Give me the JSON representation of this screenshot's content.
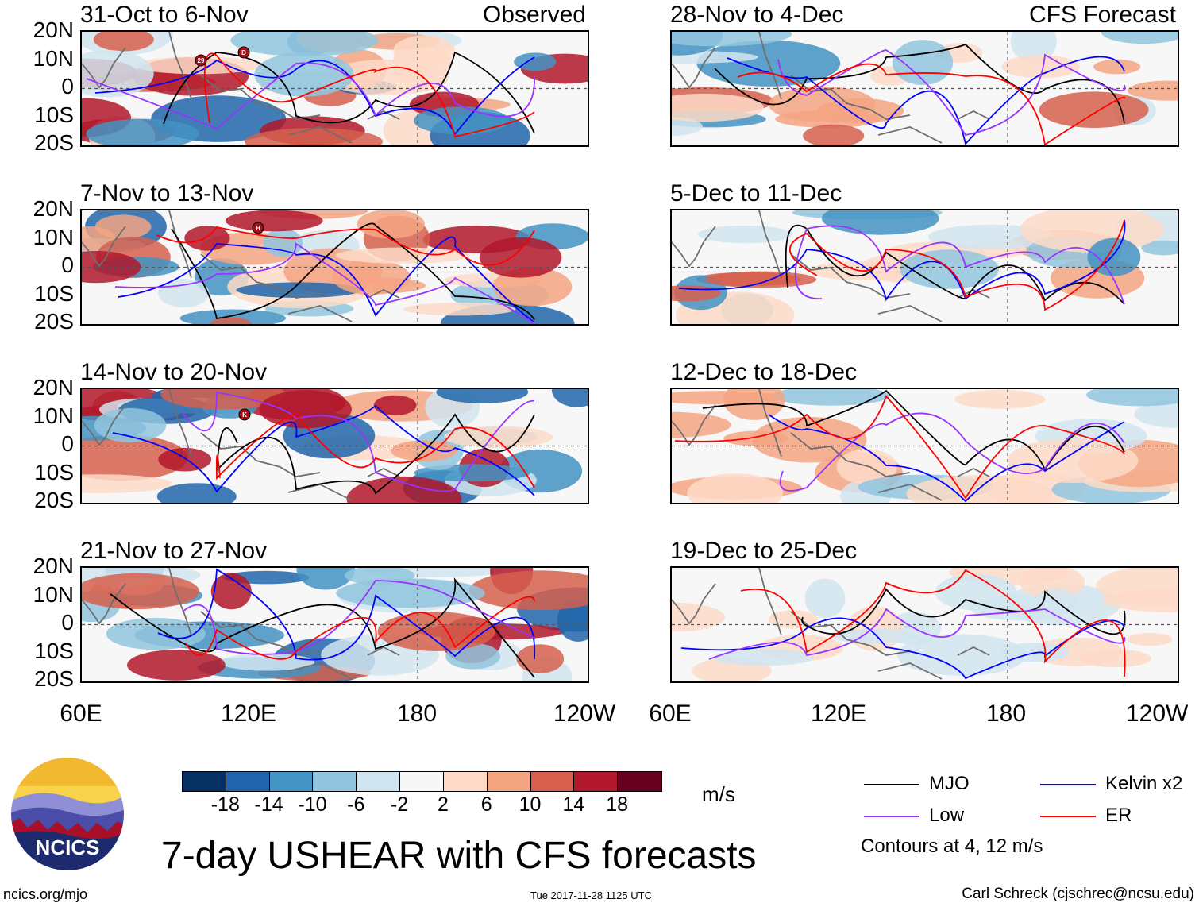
{
  "panels": {
    "left": [
      {
        "title": "31-Oct to 6-Nov",
        "tag": "Observed"
      },
      {
        "title": "7-Nov to 13-Nov",
        "tag": ""
      },
      {
        "title": "14-Nov to 20-Nov",
        "tag": ""
      },
      {
        "title": "21-Nov to 27-Nov",
        "tag": ""
      }
    ],
    "right": [
      {
        "title": "28-Nov to 4-Dec",
        "tag": "CFS Forecast"
      },
      {
        "title": "5-Dec to 11-Dec",
        "tag": ""
      },
      {
        "title": "12-Dec to 18-Dec",
        "tag": ""
      },
      {
        "title": "19-Dec to 25-Dec",
        "tag": ""
      }
    ]
  },
  "lat_labels": [
    "20N",
    "10N",
    "0",
    "10S",
    "20S"
  ],
  "lon_labels": [
    "60E",
    "120E",
    "180",
    "120W"
  ],
  "storm_markers": {
    "panel1": [
      "29",
      "D"
    ],
    "panel2": [
      "H"
    ],
    "panel3": [
      "K"
    ]
  },
  "colorbar": {
    "colors": [
      "#053061",
      "#2166ac",
      "#4393c3",
      "#92c5de",
      "#d1e5f0",
      "#f7f7f7",
      "#fddbc7",
      "#f4a582",
      "#d6604d",
      "#b2182b",
      "#67001f"
    ],
    "ticks": [
      "-18",
      "-14",
      "-10",
      "-6",
      "-2",
      "2",
      "6",
      "10",
      "14",
      "18"
    ],
    "units": "m/s"
  },
  "contour_legend": {
    "items": [
      {
        "label": "MJO",
        "color": "#000000"
      },
      {
        "label": "Kelvin x2",
        "color": "#0000ff"
      },
      {
        "label": "Low",
        "color": "#9933ff"
      },
      {
        "label": "ER",
        "color": "#ff0000"
      }
    ],
    "note": "Contours at 4, 12 m/s"
  },
  "title": "7-day USHEAR with CFS forecasts",
  "logo_text": "NCICS",
  "footer": {
    "url": "ncics.org/mjo",
    "timestamp": "Tue 2017-11-28 1125 UTC",
    "credit": "Carl Schreck (cjschrec@ncsu.edu)"
  }
}
